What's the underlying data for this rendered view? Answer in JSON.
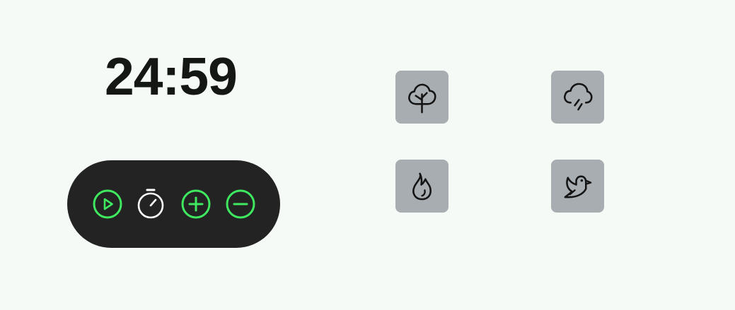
{
  "timer": {
    "display": "24:59"
  },
  "controls": {
    "accent_color": "#3ee85f",
    "background_color": "#232323",
    "buttons": [
      {
        "name": "play-button",
        "icon": "play-circle-icon"
      },
      {
        "name": "stopwatch-button",
        "icon": "stopwatch-icon"
      },
      {
        "name": "add-time-button",
        "icon": "plus-circle-icon"
      },
      {
        "name": "subtract-time-button",
        "icon": "minus-circle-icon"
      }
    ]
  },
  "sounds": {
    "tile_color": "#a8adb1",
    "items": [
      {
        "name": "forest",
        "icon": "tree-icon"
      },
      {
        "name": "rain",
        "icon": "rain-cloud-icon"
      },
      {
        "name": "fire",
        "icon": "flame-icon"
      },
      {
        "name": "birds",
        "icon": "bird-icon"
      }
    ]
  }
}
